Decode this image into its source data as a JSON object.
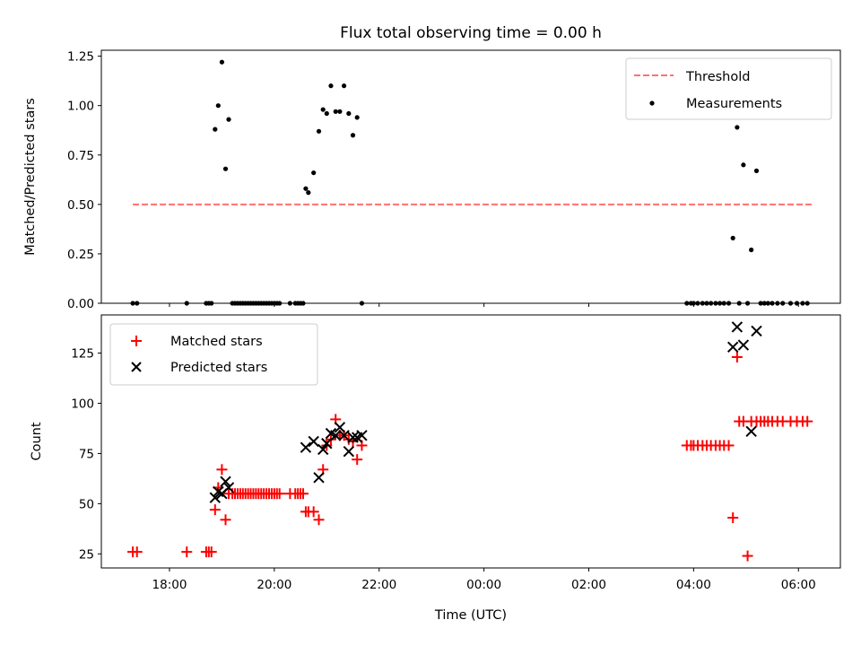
{
  "title": "Flux total observing time = 0.00 h",
  "chart_data": [
    {
      "type": "scatter",
      "ylabel": "Matched/Predicted stars",
      "ylim": [
        0,
        1.28
      ],
      "xlim": [
        16.7,
        30.8
      ],
      "yticks": [
        0.0,
        0.25,
        0.5,
        0.75,
        1.0,
        1.25
      ],
      "ytick_labels": [
        "0.00",
        "0.25",
        "0.50",
        "0.75",
        "1.00",
        "1.25"
      ],
      "legend_position": "upper right",
      "legend": [
        "Threshold",
        "Measurements"
      ],
      "threshold": {
        "name": "Threshold",
        "y": 0.5,
        "x": [
          17.3,
          30.25
        ],
        "color": "#ff7070"
      },
      "series": [
        {
          "name": "Measurements",
          "color": "#000000",
          "x": [
            17.3,
            17.38,
            18.33,
            18.7,
            18.75,
            18.8,
            18.87,
            18.93,
            19.0,
            19.07,
            19.13,
            19.2,
            19.25,
            19.3,
            19.35,
            19.4,
            19.45,
            19.5,
            19.55,
            19.6,
            19.65,
            19.7,
            19.75,
            19.8,
            19.85,
            19.9,
            19.95,
            20.0,
            20.05,
            20.1,
            20.3,
            20.4,
            20.45,
            20.5,
            20.55,
            20.6,
            20.65,
            20.75,
            20.85,
            20.93,
            21.0,
            21.08,
            21.17,
            21.25,
            21.33,
            21.42,
            21.5,
            21.58,
            21.67,
            27.87,
            27.95,
            28.0,
            28.08,
            28.17,
            28.25,
            28.33,
            28.42,
            28.5,
            28.58,
            28.67,
            28.75,
            28.83,
            28.87,
            28.95,
            29.03,
            29.1,
            29.2,
            29.28,
            29.35,
            29.42,
            29.5,
            29.6,
            29.7,
            29.85,
            29.97,
            30.08,
            30.17
          ],
          "y": [
            0,
            0,
            0,
            0,
            0,
            0,
            0.88,
            1.0,
            1.22,
            0.68,
            0.93,
            0,
            0,
            0,
            0,
            0,
            0,
            0,
            0,
            0,
            0,
            0,
            0,
            0,
            0,
            0,
            0,
            0,
            0,
            0,
            0,
            0,
            0,
            0,
            0,
            0.58,
            0.56,
            0.66,
            0.87,
            0.98,
            0.96,
            1.1,
            0.97,
            0.97,
            1.1,
            0.96,
            0.85,
            0.94,
            0,
            0,
            0,
            0,
            0,
            0,
            0,
            0,
            0,
            0,
            0,
            0,
            0.33,
            0.89,
            0,
            0.7,
            0,
            0.27,
            0.67,
            0,
            0,
            0,
            0,
            0,
            0,
            0,
            0,
            0,
            0
          ]
        }
      ]
    },
    {
      "type": "scatter",
      "xlabel": "Time (UTC)",
      "ylabel": "Count",
      "ylim": [
        18,
        144
      ],
      "xlim": [
        16.7,
        30.8
      ],
      "xticks": [
        18,
        20,
        22,
        24,
        26,
        28,
        30
      ],
      "xtick_labels": [
        "18:00",
        "20:00",
        "22:00",
        "00:00",
        "02:00",
        "04:00",
        "06:00"
      ],
      "yticks": [
        25,
        50,
        75,
        100,
        125
      ],
      "ytick_labels": [
        "25",
        "50",
        "75",
        "100",
        "125"
      ],
      "legend_position": "upper left",
      "legend": [
        "Matched stars",
        "Predicted stars"
      ],
      "series": [
        {
          "name": "Matched stars",
          "marker": "plus",
          "color": "#ff0000",
          "x": [
            17.3,
            17.38,
            18.33,
            18.7,
            18.75,
            18.8,
            18.87,
            18.93,
            19.0,
            19.07,
            19.13,
            19.2,
            19.25,
            19.3,
            19.35,
            19.4,
            19.45,
            19.5,
            19.55,
            19.6,
            19.65,
            19.7,
            19.75,
            19.8,
            19.85,
            19.9,
            19.95,
            20.0,
            20.05,
            20.1,
            20.3,
            20.4,
            20.45,
            20.5,
            20.55,
            20.6,
            20.65,
            20.75,
            20.85,
            20.93,
            21.0,
            21.08,
            21.17,
            21.25,
            21.33,
            21.42,
            21.5,
            21.58,
            21.67,
            27.87,
            27.95,
            28.0,
            28.08,
            28.17,
            28.25,
            28.33,
            28.42,
            28.5,
            28.58,
            28.67,
            28.75,
            28.83,
            28.87,
            28.95,
            29.03,
            29.1,
            29.2,
            29.28,
            29.35,
            29.42,
            29.5,
            29.6,
            29.7,
            29.85,
            29.97,
            30.08,
            30.17
          ],
          "y": [
            26,
            26,
            26,
            26,
            26,
            26,
            47,
            58,
            67,
            42,
            55,
            55,
            55,
            55,
            55,
            55,
            55,
            55,
            55,
            55,
            55,
            55,
            55,
            55,
            55,
            55,
            55,
            55,
            55,
            55,
            55,
            55,
            55,
            55,
            55,
            46,
            46,
            46,
            42,
            67,
            79,
            82,
            92,
            84,
            84,
            82,
            81,
            72,
            79,
            79,
            79,
            79,
            79,
            79,
            79,
            79,
            79,
            79,
            79,
            79,
            43,
            123,
            91,
            91,
            24,
            91,
            91,
            91,
            91,
            91,
            91,
            91,
            91,
            91,
            91,
            91,
            91
          ]
        },
        {
          "name": "Predicted stars",
          "marker": "x",
          "color": "#000000",
          "x": [
            18.87,
            18.93,
            19.0,
            19.07,
            19.13,
            20.6,
            20.75,
            20.85,
            20.93,
            21.0,
            21.08,
            21.17,
            21.25,
            21.33,
            21.42,
            21.5,
            21.58,
            21.67,
            28.75,
            28.83,
            28.95,
            29.1,
            29.2
          ],
          "y": [
            53,
            56,
            55,
            61,
            58,
            78,
            81,
            63,
            77,
            80,
            85,
            84,
            88,
            84,
            76,
            83,
            83,
            84,
            128,
            138,
            129,
            86,
            136
          ]
        }
      ]
    }
  ]
}
